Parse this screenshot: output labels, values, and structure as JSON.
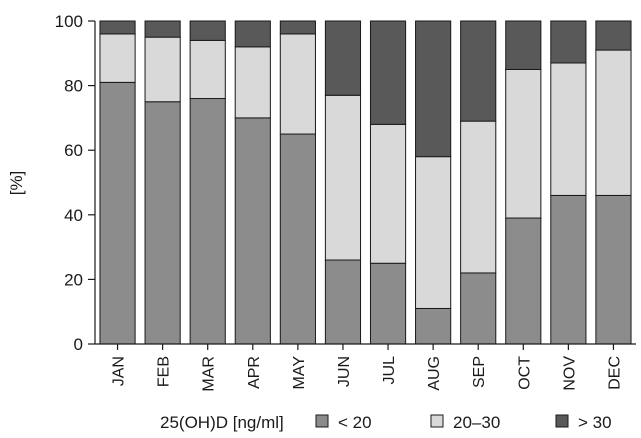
{
  "chart_data": {
    "type": "bar",
    "stacked": true,
    "categories": [
      "JAN",
      "FEB",
      "MAR",
      "APR",
      "MAY",
      "JUN",
      "JUL",
      "AUG",
      "SEP",
      "OCT",
      "NOV",
      "DEC"
    ],
    "series": [
      {
        "name": "< 20",
        "color": "#8c8c8c",
        "values": [
          81,
          75,
          76,
          70,
          65,
          26,
          25,
          11,
          22,
          39,
          46,
          46
        ]
      },
      {
        "name": "20–30",
        "color": "#d9d9d9",
        "values": [
          15,
          20,
          18,
          22,
          31,
          51,
          43,
          47,
          47,
          46,
          41,
          45
        ]
      },
      {
        "name": "> 30",
        "color": "#595959",
        "values": [
          4,
          5,
          6,
          8,
          4,
          23,
          32,
          42,
          31,
          15,
          13,
          9
        ]
      }
    ],
    "ylabel": "[%]",
    "ylim": [
      0,
      100
    ],
    "yticks": [
      0,
      20,
      40,
      60,
      80,
      100
    ],
    "legend": {
      "title": "25(OH)D [ng/ml]",
      "position": "bottom"
    },
    "grid": false
  }
}
